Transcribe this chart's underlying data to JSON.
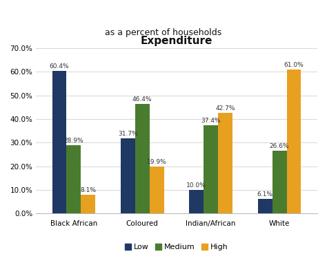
{
  "title": "Expenditure",
  "subtitle": "as a percent of households",
  "categories": [
    "Black African",
    "Coloured",
    "Indian/African",
    "White"
  ],
  "series": [
    {
      "name": "Low",
      "color": "#1F3864",
      "values": [
        60.4,
        31.7,
        10.0,
        6.1
      ]
    },
    {
      "name": "Medium",
      "color": "#4A7C2F",
      "values": [
        28.9,
        46.4,
        37.4,
        26.6
      ]
    },
    {
      "name": "High",
      "color": "#E8A020",
      "values": [
        8.1,
        19.9,
        42.7,
        61.0
      ]
    }
  ],
  "ylim": [
    0,
    70
  ],
  "yticks": [
    0,
    10,
    20,
    30,
    40,
    50,
    60,
    70
  ],
  "bar_width": 0.21,
  "background_color": "#ffffff",
  "plot_bg_color": "#ffffff",
  "grid_color": "#d0d0d0",
  "title_fontsize": 11,
  "subtitle_fontsize": 9,
  "label_fontsize": 6.5,
  "tick_fontsize": 7.5,
  "legend_fontsize": 8
}
